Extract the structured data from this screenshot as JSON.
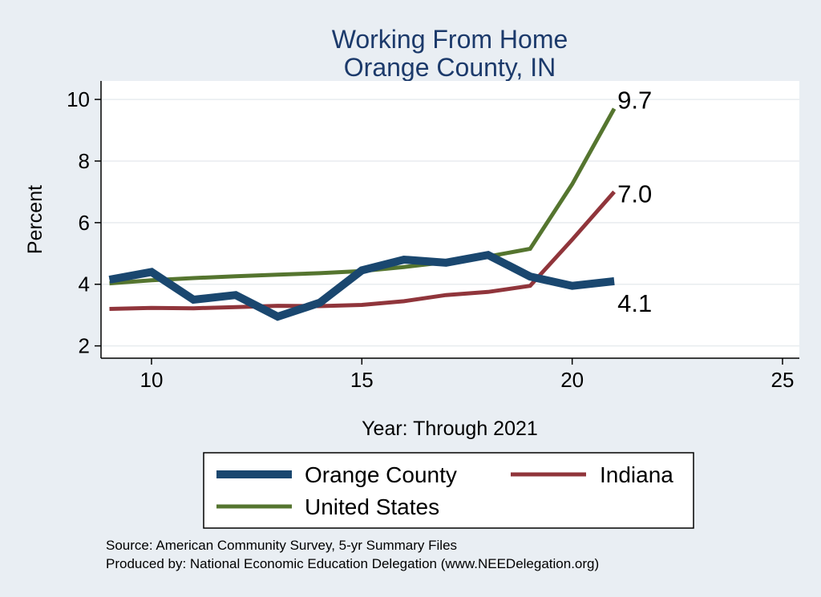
{
  "chart_data": {
    "type": "line",
    "title": [
      "Working From Home",
      "Orange County, IN"
    ],
    "xlabel": "Year: Through 2021",
    "ylabel": "Percent",
    "xlim": [
      8.8,
      25.4
    ],
    "ylim": [
      1.6,
      10.6
    ],
    "xticks": [
      10,
      15,
      20,
      25
    ],
    "yticks": [
      2,
      4,
      6,
      8,
      10
    ],
    "grid": true,
    "legend_position": "bottom",
    "series": [
      {
        "name": "Orange County",
        "color": "#1a476f",
        "x": [
          9,
          10,
          11,
          12,
          13,
          14,
          15,
          16,
          17,
          18,
          19,
          20,
          21
        ],
        "values": [
          4.15,
          4.4,
          3.5,
          3.65,
          2.95,
          3.4,
          4.45,
          4.8,
          4.7,
          4.95,
          4.25,
          3.95,
          4.1
        ],
        "end_label": "4.1"
      },
      {
        "name": "Indiana",
        "color": "#90353b",
        "x": [
          9,
          10,
          11,
          12,
          13,
          14,
          15,
          16,
          17,
          18,
          19,
          20,
          21
        ],
        "values": [
          3.2,
          3.23,
          3.22,
          3.26,
          3.3,
          3.29,
          3.33,
          3.45,
          3.65,
          3.75,
          3.95,
          5.45,
          7.0
        ],
        "end_label": "7.0"
      },
      {
        "name": "United States",
        "color": "#55752f",
        "x": [
          9,
          10,
          11,
          12,
          13,
          14,
          15,
          16,
          17,
          18,
          19,
          20,
          21
        ],
        "values": [
          4.03,
          4.13,
          4.2,
          4.26,
          4.31,
          4.36,
          4.43,
          4.56,
          4.72,
          4.9,
          5.15,
          7.25,
          9.7
        ],
        "end_label": "9.7"
      }
    ]
  },
  "footer": {
    "source": "Source: American Community Survey, 5-yr Summary Files",
    "produced_by": "Produced by: National Economic Education Delegation (www.NEEDelegation.org)"
  },
  "colors": {
    "background": "#e9eef3",
    "plot_background": "#ffffff",
    "title": "#1c3a6b"
  }
}
